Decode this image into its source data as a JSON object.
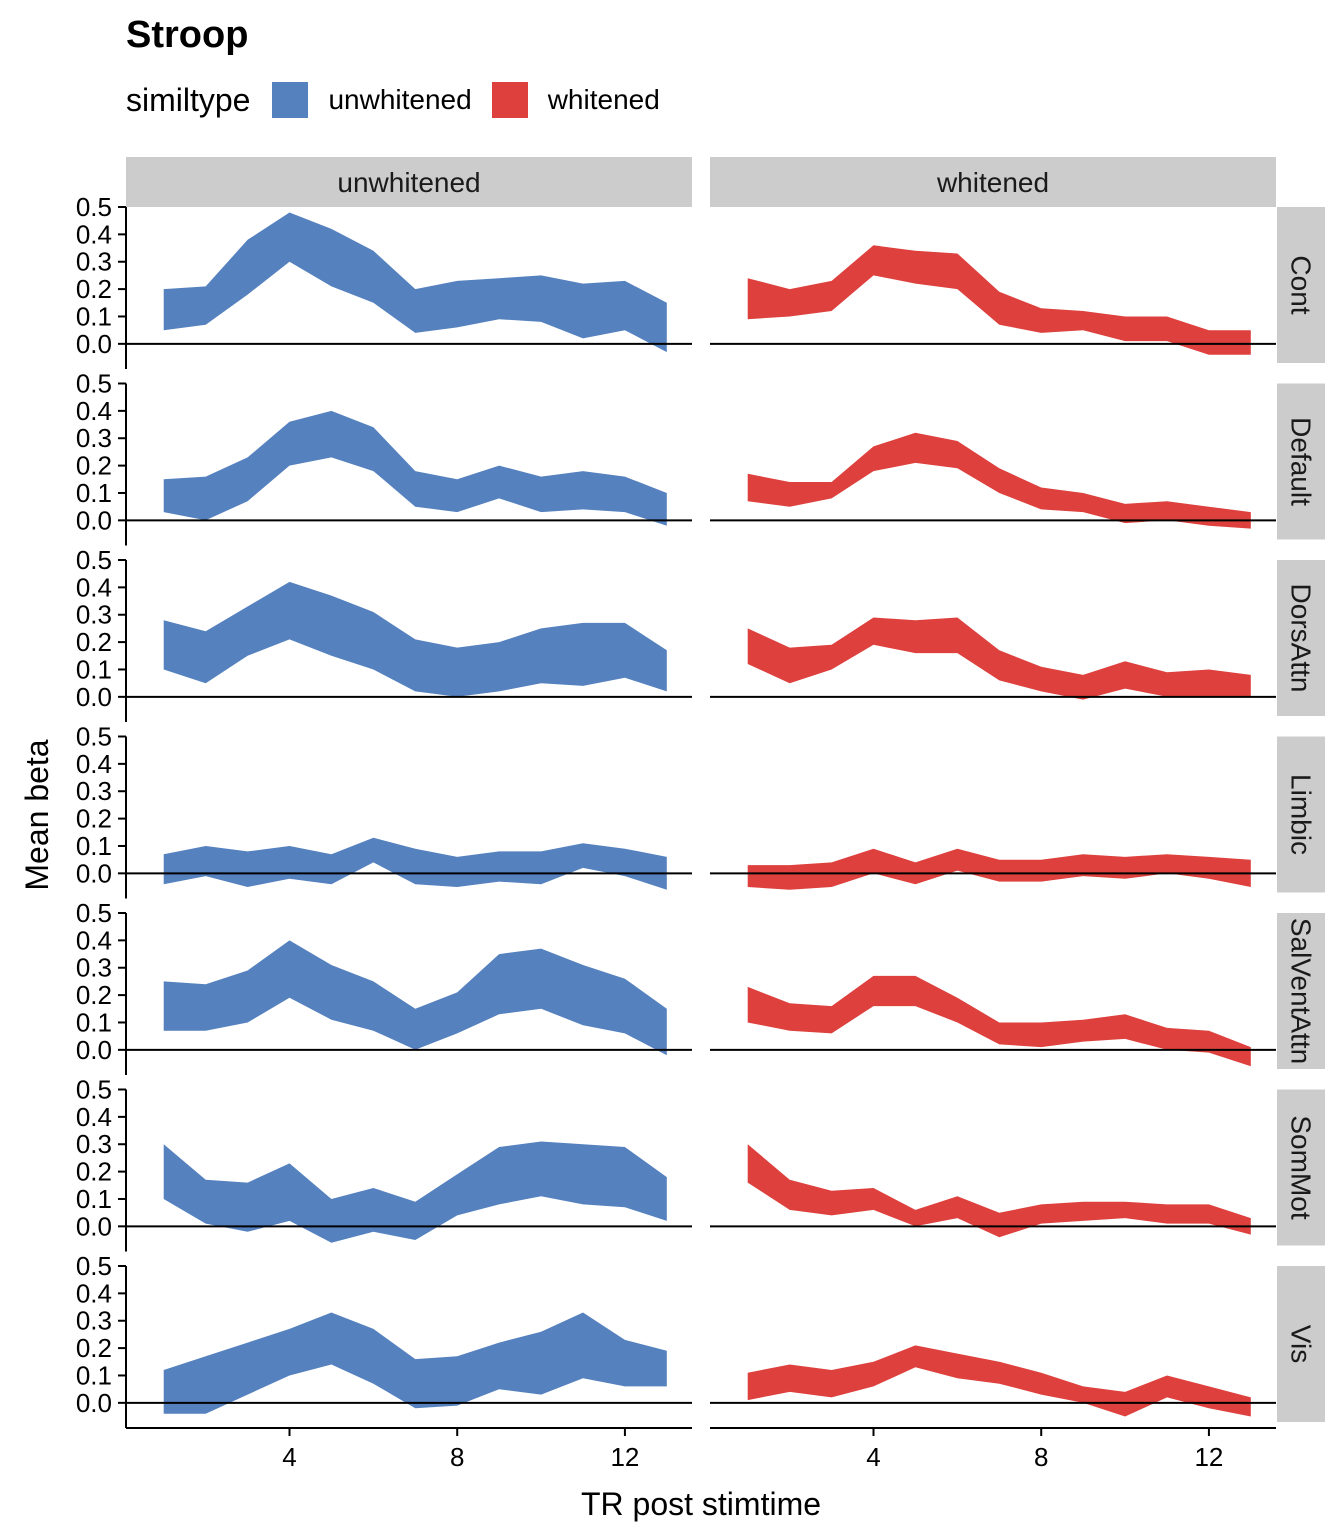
{
  "chart_data": {
    "type": "area",
    "title": "Stroop",
    "xlabel": "TR post stimtime",
    "ylabel": "Mean beta",
    "legend": {
      "title": "similtype",
      "position": "top-left",
      "entries": [
        {
          "name": "unwhitened",
          "color": "#5581BF"
        },
        {
          "name": "whitened",
          "color": "#DD403D"
        }
      ]
    },
    "x": [
      1,
      2,
      3,
      4,
      5,
      6,
      7,
      8,
      9,
      10,
      11,
      12,
      13
    ],
    "xlim": [
      0.1,
      13.6
    ],
    "xticks": [
      4,
      8,
      12
    ],
    "ylim": [
      -0.07,
      0.5
    ],
    "yticks": [
      0.0,
      0.1,
      0.2,
      0.3,
      0.4,
      0.5
    ],
    "ytick_labels": [
      "0.0",
      "0.1",
      "0.2",
      "0.3",
      "0.4",
      "0.5"
    ],
    "hline": 0,
    "columns": [
      "unwhitened",
      "whitened"
    ],
    "rows": [
      "Cont",
      "Default",
      "DorsAttn",
      "Limbic",
      "SalVentAttn",
      "SomMot",
      "Vis"
    ],
    "panels": [
      {
        "row": "Cont",
        "col": "unwhitened",
        "upper": [
          0.2,
          0.21,
          0.38,
          0.48,
          0.42,
          0.34,
          0.2,
          0.23,
          0.24,
          0.25,
          0.22,
          0.23,
          0.15
        ],
        "lower": [
          0.05,
          0.07,
          0.18,
          0.3,
          0.21,
          0.15,
          0.04,
          0.06,
          0.09,
          0.08,
          0.02,
          0.05,
          -0.03
        ]
      },
      {
        "row": "Cont",
        "col": "whitened",
        "upper": [
          0.24,
          0.2,
          0.23,
          0.36,
          0.34,
          0.33,
          0.19,
          0.13,
          0.12,
          0.1,
          0.1,
          0.05,
          0.05
        ],
        "lower": [
          0.09,
          0.1,
          0.12,
          0.25,
          0.22,
          0.2,
          0.07,
          0.04,
          0.05,
          0.01,
          0.01,
          -0.04,
          -0.04
        ]
      },
      {
        "row": "Default",
        "col": "unwhitened",
        "upper": [
          0.15,
          0.16,
          0.23,
          0.36,
          0.4,
          0.34,
          0.18,
          0.15,
          0.2,
          0.16,
          0.18,
          0.16,
          0.1
        ],
        "lower": [
          0.03,
          0.0,
          0.07,
          0.2,
          0.23,
          0.18,
          0.05,
          0.03,
          0.08,
          0.03,
          0.04,
          0.03,
          -0.02
        ]
      },
      {
        "row": "Default",
        "col": "whitened",
        "upper": [
          0.17,
          0.14,
          0.14,
          0.27,
          0.32,
          0.29,
          0.19,
          0.12,
          0.1,
          0.06,
          0.07,
          0.05,
          0.03
        ],
        "lower": [
          0.07,
          0.05,
          0.08,
          0.18,
          0.21,
          0.19,
          0.1,
          0.04,
          0.03,
          -0.01,
          0.0,
          -0.02,
          -0.03
        ]
      },
      {
        "row": "DorsAttn",
        "col": "unwhitened",
        "upper": [
          0.28,
          0.24,
          0.33,
          0.42,
          0.37,
          0.31,
          0.21,
          0.18,
          0.2,
          0.25,
          0.27,
          0.27,
          0.17
        ],
        "lower": [
          0.1,
          0.05,
          0.15,
          0.21,
          0.15,
          0.1,
          0.02,
          0.0,
          0.02,
          0.05,
          0.04,
          0.07,
          0.02
        ]
      },
      {
        "row": "DorsAttn",
        "col": "whitened",
        "upper": [
          0.25,
          0.18,
          0.19,
          0.29,
          0.28,
          0.29,
          0.17,
          0.11,
          0.08,
          0.13,
          0.09,
          0.1,
          0.08
        ],
        "lower": [
          0.12,
          0.05,
          0.1,
          0.19,
          0.16,
          0.16,
          0.06,
          0.02,
          -0.01,
          0.03,
          0.0,
          0.0,
          0.0
        ]
      },
      {
        "row": "Limbic",
        "col": "unwhitened",
        "upper": [
          0.07,
          0.1,
          0.08,
          0.1,
          0.07,
          0.13,
          0.09,
          0.06,
          0.08,
          0.08,
          0.11,
          0.09,
          0.06
        ],
        "lower": [
          -0.04,
          -0.01,
          -0.05,
          -0.02,
          -0.04,
          0.04,
          -0.04,
          -0.05,
          -0.03,
          -0.04,
          0.02,
          -0.01,
          -0.06
        ]
      },
      {
        "row": "Limbic",
        "col": "whitened",
        "upper": [
          0.03,
          0.03,
          0.04,
          0.09,
          0.04,
          0.09,
          0.05,
          0.05,
          0.07,
          0.06,
          0.07,
          0.06,
          0.05
        ],
        "lower": [
          -0.05,
          -0.06,
          -0.05,
          0.0,
          -0.04,
          0.01,
          -0.03,
          -0.03,
          -0.01,
          -0.02,
          0.0,
          -0.02,
          -0.05
        ]
      },
      {
        "row": "SalVentAttn",
        "col": "unwhitened",
        "upper": [
          0.25,
          0.24,
          0.29,
          0.4,
          0.31,
          0.25,
          0.15,
          0.21,
          0.35,
          0.37,
          0.31,
          0.26,
          0.15
        ],
        "lower": [
          0.07,
          0.07,
          0.1,
          0.19,
          0.11,
          0.07,
          0.0,
          0.06,
          0.13,
          0.15,
          0.09,
          0.06,
          -0.02
        ]
      },
      {
        "row": "SalVentAttn",
        "col": "whitened",
        "upper": [
          0.23,
          0.17,
          0.16,
          0.27,
          0.27,
          0.19,
          0.1,
          0.1,
          0.11,
          0.13,
          0.08,
          0.07,
          0.01
        ],
        "lower": [
          0.1,
          0.07,
          0.06,
          0.16,
          0.16,
          0.1,
          0.02,
          0.01,
          0.03,
          0.04,
          0.0,
          -0.01,
          -0.06
        ]
      },
      {
        "row": "SomMot",
        "col": "unwhitened",
        "upper": [
          0.3,
          0.17,
          0.16,
          0.23,
          0.1,
          0.14,
          0.09,
          0.19,
          0.29,
          0.31,
          0.3,
          0.29,
          0.18
        ],
        "lower": [
          0.1,
          0.01,
          -0.02,
          0.02,
          -0.06,
          -0.02,
          -0.05,
          0.04,
          0.08,
          0.11,
          0.08,
          0.07,
          0.02
        ]
      },
      {
        "row": "SomMot",
        "col": "whitened",
        "upper": [
          0.3,
          0.17,
          0.13,
          0.14,
          0.06,
          0.11,
          0.05,
          0.08,
          0.09,
          0.09,
          0.08,
          0.08,
          0.03
        ],
        "lower": [
          0.16,
          0.06,
          0.04,
          0.06,
          0.0,
          0.03,
          -0.04,
          0.01,
          0.02,
          0.03,
          0.01,
          0.01,
          -0.03
        ]
      },
      {
        "row": "Vis",
        "col": "unwhitened",
        "upper": [
          0.12,
          0.17,
          0.22,
          0.27,
          0.33,
          0.27,
          0.16,
          0.17,
          0.22,
          0.26,
          0.33,
          0.23,
          0.19
        ],
        "lower": [
          -0.04,
          -0.04,
          0.03,
          0.1,
          0.14,
          0.07,
          -0.02,
          -0.01,
          0.05,
          0.03,
          0.09,
          0.06,
          0.06
        ]
      },
      {
        "row": "Vis",
        "col": "whitened",
        "upper": [
          0.11,
          0.14,
          0.12,
          0.15,
          0.21,
          0.18,
          0.15,
          0.11,
          0.06,
          0.04,
          0.1,
          0.06,
          0.02
        ],
        "lower": [
          0.01,
          0.04,
          0.02,
          0.06,
          0.13,
          0.09,
          0.07,
          0.03,
          0.0,
          -0.05,
          0.02,
          -0.02,
          -0.05
        ]
      }
    ]
  }
}
